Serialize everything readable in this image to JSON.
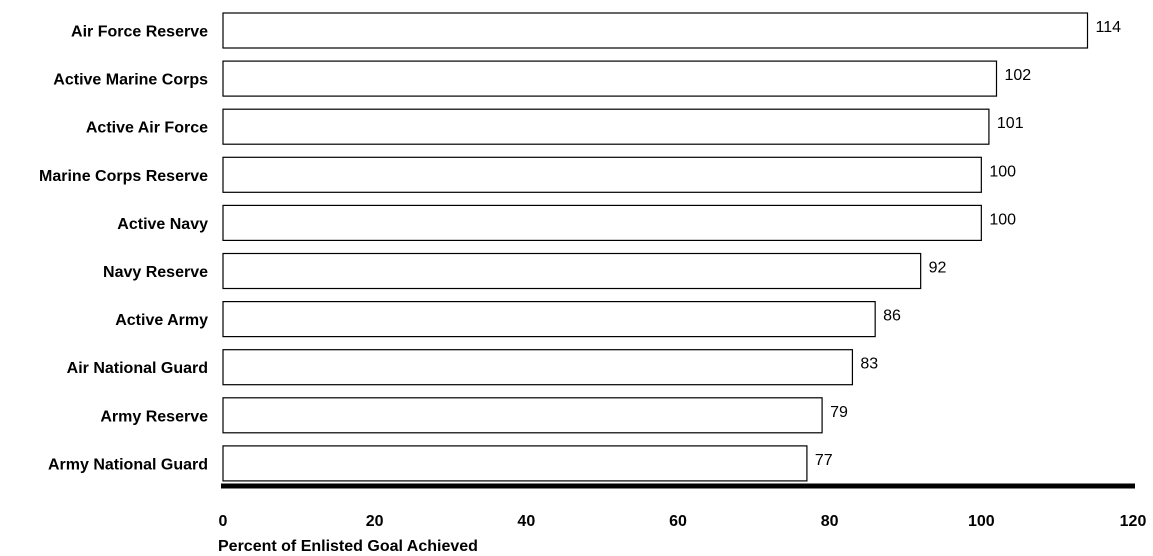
{
  "chart_data": {
    "type": "bar",
    "orientation": "horizontal",
    "categories": [
      "Air Force Reserve",
      "Active Marine Corps",
      "Active Air Force",
      "Marine Corps Reserve",
      "Active Navy",
      "Navy Reserve",
      "Active Army",
      "Air National Guard",
      "Army Reserve",
      "Army National Guard"
    ],
    "values": [
      114,
      102,
      101,
      100,
      100,
      92,
      86,
      83,
      79,
      77
    ],
    "data_labels": [
      "114",
      "102",
      "101",
      "100",
      "100",
      "92",
      "86",
      "83",
      "79",
      "77"
    ],
    "xlim": [
      0,
      120
    ],
    "xticks": [
      "0",
      "20",
      "40",
      "60",
      "80",
      "100",
      "120"
    ],
    "xlabel": "Percent of Enlisted Goal Achieved",
    "grid": false,
    "legend": "none",
    "colors": {
      "bar_fill": "#ffffff",
      "bar_stroke": "#000000",
      "axis": "#000000"
    }
  }
}
